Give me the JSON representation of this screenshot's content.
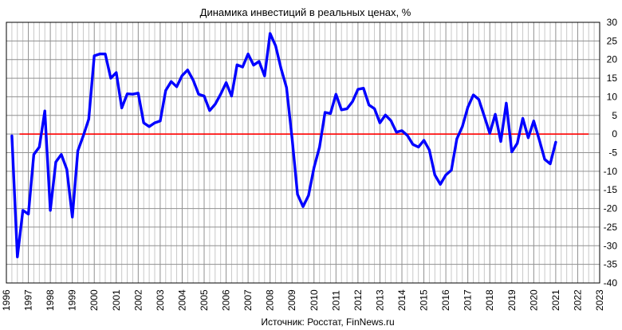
{
  "chart_data": {
    "type": "line",
    "title": "Динамика инвестиций в реальных ценах, %",
    "source": "Источник: Росстат, FinNews.ru",
    "xlabel": "",
    "ylabel": "",
    "xlim": [
      1996,
      2023
    ],
    "ylim": [
      -40,
      30
    ],
    "x_ticks": [
      "1996",
      "1997",
      "1998",
      "1999",
      "2000",
      "2001",
      "2002",
      "2003",
      "2004",
      "2005",
      "2006",
      "2007",
      "2008",
      "2009",
      "2010",
      "2011",
      "2012",
      "2013",
      "2014",
      "2015",
      "2016",
      "2017",
      "2018",
      "2019",
      "2020",
      "2021",
      "2022",
      "2023"
    ],
    "y_ticks": [
      "30",
      "25",
      "20",
      "15",
      "10",
      "5",
      "0",
      "-5",
      "-10",
      "-15",
      "-20",
      "-25",
      "-30",
      "-35",
      "-40"
    ],
    "grid": true,
    "colors": {
      "series": "#0000ff",
      "zero_line": "#ff0000",
      "grid": "#aaaaaa"
    },
    "zero_line": {
      "y": 0,
      "x_from": 1996.6,
      "x_to": 2022.5
    },
    "series": [
      {
        "x": [
          1996.25,
          1996.5,
          1996.75,
          1997.0,
          1997.25,
          1997.5,
          1997.75,
          1998.0,
          1998.25,
          1998.5,
          1998.75,
          1999.0,
          1999.25,
          1999.5,
          1999.75,
          2000.0,
          2000.25,
          2000.5,
          2000.75,
          2001.0,
          2001.25,
          2001.5,
          2001.75,
          2002.0,
          2002.25,
          2002.5,
          2002.75,
          2003.0,
          2003.25,
          2003.5,
          2003.75,
          2004.0,
          2004.25,
          2004.5,
          2004.75,
          2005.0,
          2005.25,
          2005.5,
          2005.75,
          2006.0,
          2006.25,
          2006.5,
          2006.75,
          2007.0,
          2007.25,
          2007.5,
          2007.75,
          2008.0,
          2008.25,
          2008.5,
          2008.75,
          2009.0,
          2009.25,
          2009.5,
          2009.75,
          2010.0,
          2010.25,
          2010.5,
          2010.75,
          2011.0,
          2011.25,
          2011.5,
          2011.75,
          2012.0,
          2012.25,
          2012.5,
          2012.75,
          2013.0,
          2013.25,
          2013.5,
          2013.75,
          2014.0,
          2014.25,
          2014.5,
          2014.75,
          2015.0,
          2015.25,
          2015.5,
          2015.75,
          2016.0,
          2016.25,
          2016.5,
          2016.75,
          2017.0,
          2017.25,
          2017.5,
          2017.75,
          2018.0,
          2018.25,
          2018.5,
          2018.75,
          2019.0,
          2019.25,
          2019.5,
          2019.75,
          2020.0,
          2020.25,
          2020.5,
          2020.75,
          2021.0
        ],
        "y": [
          -0.5,
          -33,
          -20.5,
          -21.5,
          -5.5,
          -3.5,
          6.2,
          -20.5,
          -7.5,
          -5.5,
          -9.5,
          -22.3,
          -4.5,
          -0.5,
          4,
          21,
          21.5,
          21.5,
          15,
          16.5,
          7,
          10.8,
          10.7,
          11,
          3,
          2,
          3,
          3.5,
          11.7,
          14.1,
          12.7,
          15.7,
          17.2,
          14.5,
          10.7,
          10.2,
          6.3,
          8,
          10.7,
          13.8,
          10.2,
          18.6,
          18,
          21.5,
          18.5,
          19.5,
          15.6,
          27,
          23.7,
          17.6,
          12.5,
          -1,
          -16.2,
          -19.5,
          -16.5,
          -9,
          -3.5,
          5.8,
          5.5,
          10.7,
          6.5,
          6.8,
          8.7,
          12,
          12.3,
          7.8,
          6.8,
          3,
          5.1,
          3.6,
          0.5,
          0.9,
          -0.4,
          -2.8,
          -3.5,
          -1.7,
          -4.3,
          -11,
          -13.5,
          -11,
          -9.7,
          -1.3,
          2,
          7.2,
          10.5,
          9.3,
          4.8,
          0.2,
          5.3,
          -2,
          8.3,
          -4.8,
          -2.5,
          4.2,
          -1,
          3.5,
          -1.5,
          -6.8,
          -8,
          -2.2
        ]
      }
    ]
  }
}
